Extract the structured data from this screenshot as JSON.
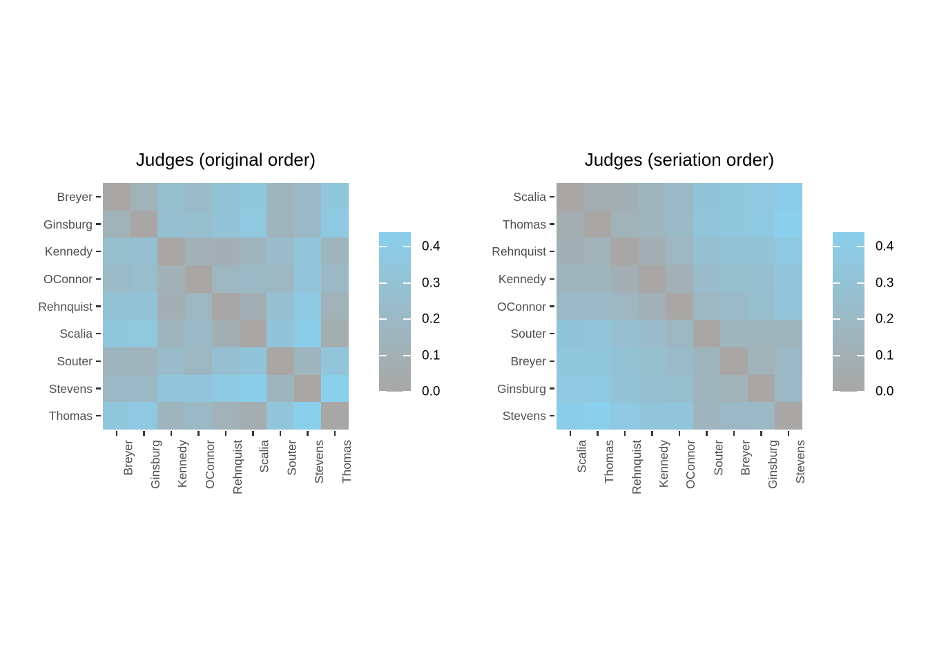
{
  "page": {
    "background": "#FFFFFF"
  },
  "figure": {
    "scale": {
      "min": 0.0,
      "max": 0.44,
      "low_color": "#A9A7A5",
      "high_color": "#8ACFEC",
      "legend_ticks": [
        {
          "value": 0.0,
          "label": "0.0"
        },
        {
          "value": 0.1,
          "label": "0.1"
        },
        {
          "value": 0.2,
          "label": "0.2"
        },
        {
          "value": 0.3,
          "label": "0.3"
        },
        {
          "value": 0.4,
          "label": "0.4"
        }
      ]
    },
    "text_colors": {
      "title": "#000000",
      "axis_text": "#4D4D4D",
      "axis_tick": "#333333",
      "legend_label": "#000000"
    }
  },
  "chart_data": [
    {
      "type": "heatmap",
      "title": "Judges (original order)",
      "legend_position": "right",
      "categories": [
        "Breyer",
        "Ginsburg",
        "Kennedy",
        "OConnor",
        "Rehnquist",
        "Scalia",
        "Souter",
        "Stevens",
        "Thomas"
      ],
      "matrix": [
        [
          0.0,
          0.12,
          0.25,
          0.21,
          0.3,
          0.35,
          0.15,
          0.19,
          0.35
        ],
        [
          0.12,
          0.0,
          0.27,
          0.25,
          0.31,
          0.36,
          0.14,
          0.2,
          0.37
        ],
        [
          0.25,
          0.27,
          0.0,
          0.11,
          0.09,
          0.15,
          0.22,
          0.33,
          0.15
        ],
        [
          0.21,
          0.25,
          0.11,
          0.0,
          0.16,
          0.2,
          0.18,
          0.33,
          0.2
        ],
        [
          0.3,
          0.31,
          0.09,
          0.16,
          0.0,
          0.1,
          0.27,
          0.37,
          0.12
        ],
        [
          0.35,
          0.36,
          0.15,
          0.2,
          0.1,
          0.0,
          0.32,
          0.42,
          0.07
        ],
        [
          0.15,
          0.14,
          0.22,
          0.18,
          0.27,
          0.32,
          0.0,
          0.15,
          0.33
        ],
        [
          0.19,
          0.2,
          0.33,
          0.33,
          0.37,
          0.42,
          0.15,
          0.0,
          0.44
        ],
        [
          0.35,
          0.37,
          0.15,
          0.2,
          0.12,
          0.07,
          0.33,
          0.44,
          0.0
        ]
      ]
    },
    {
      "type": "heatmap",
      "title": "Judges (seriation order)",
      "legend_position": "right",
      "categories": [
        "Scalia",
        "Thomas",
        "Rehnquist",
        "Kennedy",
        "OConnor",
        "Souter",
        "Breyer",
        "Ginsburg",
        "Stevens"
      ],
      "matrix": [
        [
          0.0,
          0.07,
          0.1,
          0.15,
          0.2,
          0.32,
          0.35,
          0.36,
          0.42
        ],
        [
          0.07,
          0.0,
          0.12,
          0.15,
          0.2,
          0.33,
          0.35,
          0.37,
          0.44
        ],
        [
          0.1,
          0.12,
          0.0,
          0.09,
          0.16,
          0.27,
          0.3,
          0.31,
          0.37
        ],
        [
          0.15,
          0.15,
          0.09,
          0.0,
          0.11,
          0.22,
          0.25,
          0.27,
          0.33
        ],
        [
          0.2,
          0.2,
          0.16,
          0.11,
          0.0,
          0.18,
          0.21,
          0.25,
          0.33
        ],
        [
          0.32,
          0.33,
          0.27,
          0.22,
          0.18,
          0.0,
          0.15,
          0.14,
          0.15
        ],
        [
          0.35,
          0.35,
          0.3,
          0.25,
          0.21,
          0.15,
          0.0,
          0.12,
          0.19
        ],
        [
          0.36,
          0.37,
          0.31,
          0.27,
          0.25,
          0.14,
          0.12,
          0.0,
          0.2
        ],
        [
          0.42,
          0.44,
          0.37,
          0.33,
          0.33,
          0.15,
          0.19,
          0.2,
          0.0
        ]
      ]
    }
  ]
}
